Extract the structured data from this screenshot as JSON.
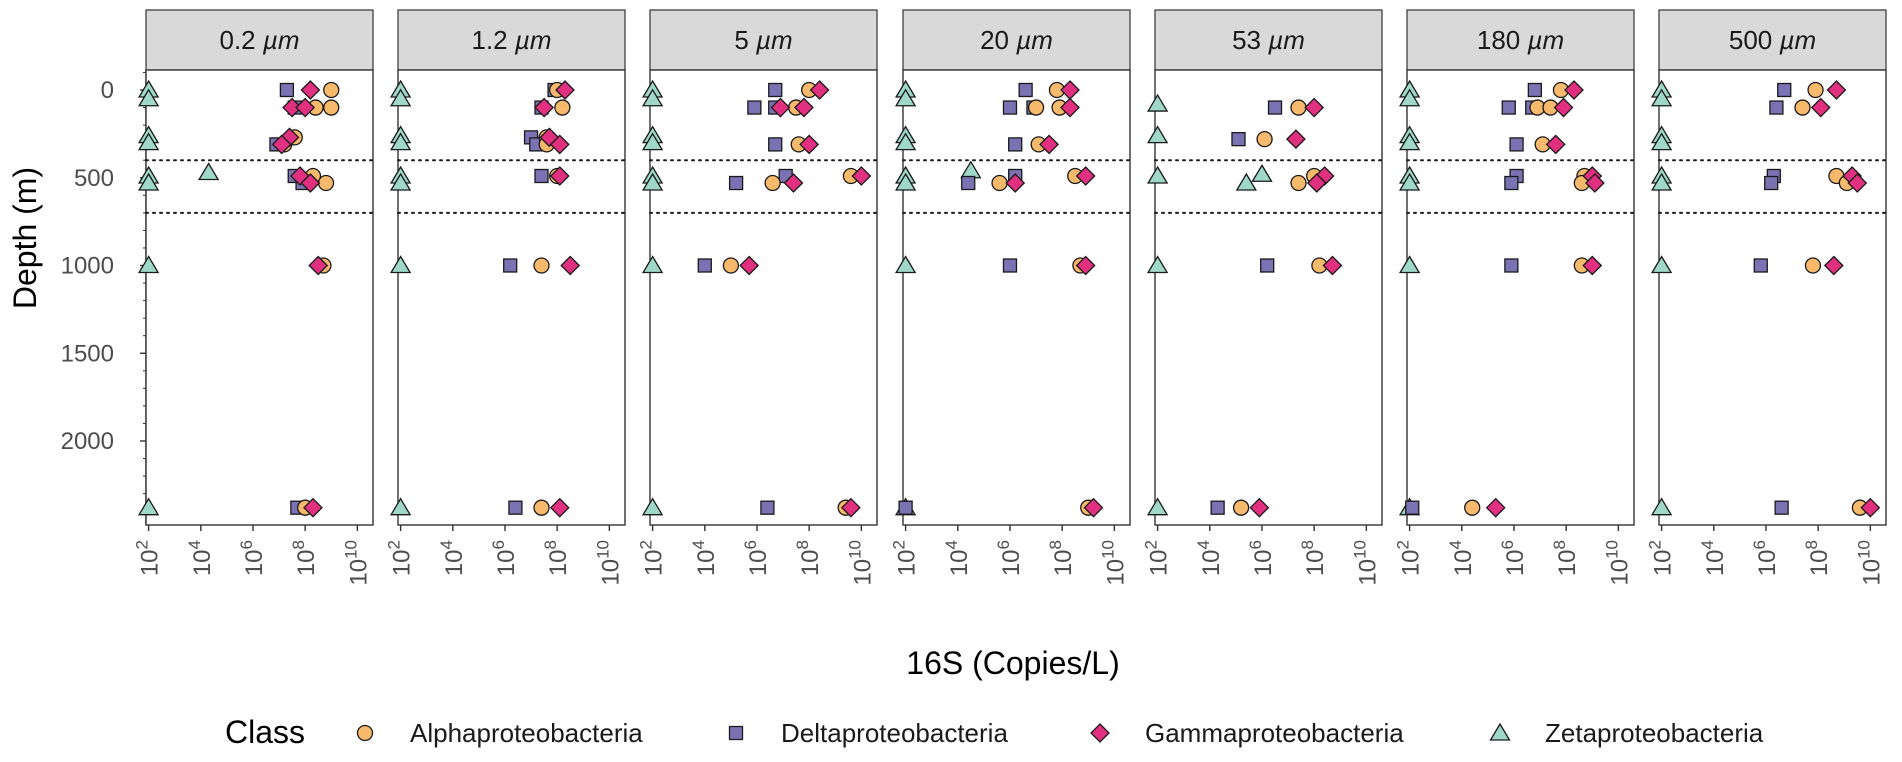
{
  "chart_data": {
    "type": "scatter",
    "facets": [
      "0.2 µm",
      "1.2 µm",
      "5 µm",
      "20 µm",
      "53 µm",
      "180 µm",
      "500 µm"
    ],
    "facet_size_values": [
      "0.2",
      "1.2",
      "5",
      "20",
      "53",
      "180",
      "500"
    ],
    "facet_unit": "µm",
    "xlabel": "16S (Copies/L)",
    "ylabel": "Depth (m)",
    "x_scale": "log10",
    "x_log10_lim": [
      1.9,
      10.6
    ],
    "x_ticks": [
      {
        "base": "10",
        "exp": "2",
        "value": 2
      },
      {
        "base": "10",
        "exp": "4",
        "value": 4
      },
      {
        "base": "10",
        "exp": "6",
        "value": 6
      },
      {
        "base": "10",
        "exp": "8",
        "value": 8
      },
      {
        "base": "10",
        "exp": "10",
        "value": 10
      }
    ],
    "y_reversed": true,
    "ylim": [
      -120,
      2450
    ],
    "y_ticks": [
      {
        "label": "0",
        "value": 0
      },
      {
        "label": "500",
        "value": 500
      },
      {
        "label": "1000",
        "value": 1000
      },
      {
        "label": "1500",
        "value": 1500
      },
      {
        "label": "2000",
        "value": 2000
      }
    ],
    "hlines_dotted": [
      400,
      700
    ],
    "legend": {
      "title": "Class",
      "position": "bottom",
      "entries": [
        {
          "name": "Alphaproteobacteria",
          "shape": "circle",
          "color": "#f7b96b"
        },
        {
          "name": "Deltaproteobacteria",
          "shape": "square",
          "color": "#7b72b4"
        },
        {
          "name": "Gammaproteobacteria",
          "shape": "diamond",
          "color": "#e0307f"
        },
        {
          "name": "Zetaproteobacteria",
          "shape": "triangle",
          "color": "#9fd8c8"
        }
      ]
    },
    "series_note": "each point: [depth_m, log10(copies per L)]",
    "panels": [
      {
        "facet": "0.2 µm",
        "Alphaproteobacteria": [
          [
            0,
            9.0
          ],
          [
            100,
            8.4
          ],
          [
            100,
            9.0
          ],
          [
            270,
            7.6
          ],
          [
            310,
            7.2
          ],
          [
            490,
            8.3
          ],
          [
            530,
            8.8
          ],
          [
            1000,
            8.7
          ],
          [
            2380,
            8.0
          ]
        ],
        "Deltaproteobacteria": [
          [
            0,
            7.3
          ],
          [
            100,
            7.6
          ],
          [
            310,
            6.9
          ],
          [
            490,
            7.6
          ],
          [
            530,
            7.9
          ],
          [
            2380,
            7.7
          ]
        ],
        "Gammaproteobacteria": [
          [
            0,
            8.2
          ],
          [
            100,
            7.5
          ],
          [
            100,
            8.0
          ],
          [
            270,
            7.4
          ],
          [
            310,
            7.1
          ],
          [
            490,
            7.8
          ],
          [
            530,
            8.2
          ],
          [
            1000,
            8.5
          ],
          [
            2380,
            8.3
          ]
        ],
        "Zetaproteobacteria": [
          [
            0,
            2.0
          ],
          [
            50,
            2.0
          ],
          [
            260,
            2.0
          ],
          [
            300,
            2.0
          ],
          [
            470,
            4.3
          ],
          [
            490,
            2.0
          ],
          [
            530,
            2.0
          ],
          [
            1000,
            2.0
          ],
          [
            2380,
            2.0
          ]
        ]
      },
      {
        "facet": "1.2 µm",
        "Alphaproteobacteria": [
          [
            0,
            8.0
          ],
          [
            100,
            8.2
          ],
          [
            270,
            7.6
          ],
          [
            310,
            7.6
          ],
          [
            490,
            8.0
          ],
          [
            1000,
            7.4
          ],
          [
            2380,
            7.4
          ]
        ],
        "Deltaproteobacteria": [
          [
            0,
            7.9
          ],
          [
            100,
            7.4
          ],
          [
            270,
            7.0
          ],
          [
            310,
            7.2
          ],
          [
            490,
            7.4
          ],
          [
            1000,
            6.2
          ],
          [
            2380,
            6.4
          ]
        ],
        "Gammaproteobacteria": [
          [
            0,
            8.3
          ],
          [
            100,
            7.5
          ],
          [
            270,
            7.7
          ],
          [
            310,
            8.1
          ],
          [
            490,
            8.1
          ],
          [
            1000,
            8.5
          ],
          [
            2380,
            8.1
          ]
        ],
        "Zetaproteobacteria": [
          [
            0,
            2.0
          ],
          [
            50,
            2.0
          ],
          [
            260,
            2.0
          ],
          [
            300,
            2.0
          ],
          [
            490,
            2.0
          ],
          [
            530,
            2.0
          ],
          [
            1000,
            2.0
          ],
          [
            2380,
            2.0
          ]
        ]
      },
      {
        "facet": "5 µm",
        "Alphaproteobacteria": [
          [
            0,
            8.0
          ],
          [
            100,
            7.5
          ],
          [
            310,
            7.6
          ],
          [
            490,
            9.6
          ],
          [
            530,
            6.6
          ],
          [
            1000,
            5.0
          ],
          [
            2380,
            9.4
          ]
        ],
        "Deltaproteobacteria": [
          [
            0,
            6.7
          ],
          [
            100,
            5.9
          ],
          [
            100,
            6.7
          ],
          [
            310,
            6.7
          ],
          [
            490,
            7.1
          ],
          [
            530,
            5.2
          ],
          [
            1000,
            4.0
          ],
          [
            2380,
            6.4
          ]
        ],
        "Gammaproteobacteria": [
          [
            0,
            8.4
          ],
          [
            100,
            6.9
          ],
          [
            100,
            7.8
          ],
          [
            310,
            8.0
          ],
          [
            490,
            10.0
          ],
          [
            530,
            7.4
          ],
          [
            1000,
            5.7
          ],
          [
            2380,
            9.6
          ]
        ],
        "Zetaproteobacteria": [
          [
            0,
            2.0
          ],
          [
            50,
            2.0
          ],
          [
            260,
            2.0
          ],
          [
            300,
            2.0
          ],
          [
            490,
            2.0
          ],
          [
            530,
            2.0
          ],
          [
            1000,
            2.0
          ],
          [
            2380,
            2.0
          ]
        ]
      },
      {
        "facet": "20 µm",
        "Alphaproteobacteria": [
          [
            0,
            7.8
          ],
          [
            100,
            7.0
          ],
          [
            100,
            7.9
          ],
          [
            310,
            7.1
          ],
          [
            490,
            8.5
          ],
          [
            530,
            5.6
          ],
          [
            1000,
            8.7
          ],
          [
            2380,
            9.0
          ]
        ],
        "Deltaproteobacteria": [
          [
            0,
            6.6
          ],
          [
            100,
            6.0
          ],
          [
            100,
            6.9
          ],
          [
            310,
            6.2
          ],
          [
            490,
            6.2
          ],
          [
            530,
            4.4
          ],
          [
            1000,
            6.0
          ],
          [
            2380,
            2.0
          ]
        ],
        "Gammaproteobacteria": [
          [
            0,
            8.3
          ],
          [
            100,
            8.3
          ],
          [
            310,
            7.5
          ],
          [
            490,
            8.9
          ],
          [
            530,
            6.2
          ],
          [
            1000,
            8.9
          ],
          [
            2380,
            9.2
          ]
        ],
        "Zetaproteobacteria": [
          [
            0,
            2.0
          ],
          [
            50,
            2.0
          ],
          [
            260,
            2.0
          ],
          [
            300,
            2.0
          ],
          [
            460,
            4.5
          ],
          [
            490,
            2.0
          ],
          [
            530,
            2.0
          ],
          [
            1000,
            2.0
          ],
          [
            2380,
            2.0
          ]
        ]
      },
      {
        "facet": "53 µm",
        "Alphaproteobacteria": [
          [
            100,
            7.4
          ],
          [
            280,
            6.1
          ],
          [
            490,
            8.0
          ],
          [
            530,
            7.4
          ],
          [
            1000,
            8.2
          ],
          [
            2380,
            5.2
          ]
        ],
        "Deltaproteobacteria": [
          [
            100,
            6.5
          ],
          [
            280,
            5.1
          ],
          [
            1000,
            6.2
          ],
          [
            2380,
            4.3
          ]
        ],
        "Gammaproteobacteria": [
          [
            100,
            8.0
          ],
          [
            280,
            7.3
          ],
          [
            490,
            8.4
          ],
          [
            530,
            8.1
          ],
          [
            1000,
            8.7
          ],
          [
            2380,
            5.9
          ]
        ],
        "Zetaproteobacteria": [
          [
            80,
            2.0
          ],
          [
            260,
            2.0
          ],
          [
            490,
            2.0
          ],
          [
            530,
            5.4
          ],
          [
            480,
            6.0
          ],
          [
            1000,
            2.0
          ],
          [
            2380,
            2.0
          ]
        ]
      },
      {
        "facet": "180 µm",
        "Alphaproteobacteria": [
          [
            0,
            7.8
          ],
          [
            100,
            6.9
          ],
          [
            100,
            7.4
          ],
          [
            310,
            7.1
          ],
          [
            490,
            8.7
          ],
          [
            530,
            8.6
          ],
          [
            1000,
            8.6
          ],
          [
            2380,
            4.4
          ]
        ],
        "Deltaproteobacteria": [
          [
            0,
            6.8
          ],
          [
            100,
            5.8
          ],
          [
            100,
            6.7
          ],
          [
            310,
            6.1
          ],
          [
            490,
            6.1
          ],
          [
            530,
            5.9
          ],
          [
            1000,
            5.9
          ],
          [
            2380,
            2.1
          ]
        ],
        "Gammaproteobacteria": [
          [
            0,
            8.3
          ],
          [
            100,
            7.9
          ],
          [
            310,
            7.6
          ],
          [
            490,
            9.0
          ],
          [
            530,
            9.1
          ],
          [
            1000,
            9.0
          ],
          [
            2380,
            5.3
          ]
        ],
        "Zetaproteobacteria": [
          [
            0,
            2.0
          ],
          [
            50,
            2.0
          ],
          [
            260,
            2.0
          ],
          [
            300,
            2.0
          ],
          [
            490,
            2.0
          ],
          [
            530,
            2.0
          ],
          [
            1000,
            2.0
          ],
          [
            2380,
            2.0
          ]
        ]
      },
      {
        "facet": "500 µm",
        "Alphaproteobacteria": [
          [
            0,
            7.9
          ],
          [
            100,
            7.4
          ],
          [
            490,
            8.7
          ],
          [
            530,
            9.1
          ],
          [
            1000,
            7.8
          ],
          [
            2380,
            9.6
          ]
        ],
        "Deltaproteobacteria": [
          [
            0,
            6.7
          ],
          [
            100,
            6.4
          ],
          [
            490,
            6.3
          ],
          [
            530,
            6.2
          ],
          [
            1000,
            5.8
          ],
          [
            2380,
            6.6
          ]
        ],
        "Gammaproteobacteria": [
          [
            0,
            8.7
          ],
          [
            100,
            8.1
          ],
          [
            490,
            9.3
          ],
          [
            530,
            9.5
          ],
          [
            1000,
            8.6
          ],
          [
            2380,
            10.0
          ]
        ],
        "Zetaproteobacteria": [
          [
            0,
            2.0
          ],
          [
            50,
            2.0
          ],
          [
            260,
            2.0
          ],
          [
            300,
            2.0
          ],
          [
            490,
            2.0
          ],
          [
            530,
            2.0
          ],
          [
            1000,
            2.0
          ],
          [
            2380,
            2.0
          ]
        ]
      }
    ]
  }
}
